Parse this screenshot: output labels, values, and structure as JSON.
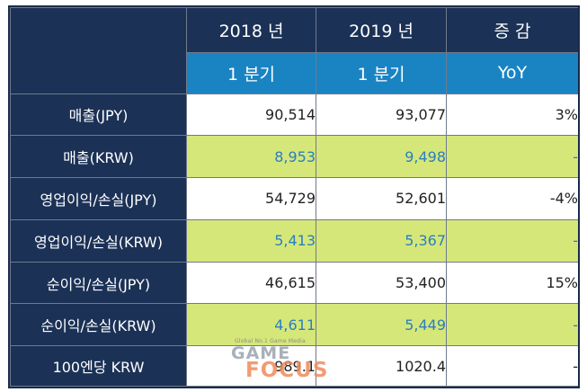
{
  "header": {
    "col_2018": "2018 년",
    "col_2019": "2019 년",
    "col_change": "증 감",
    "sub_2018": "1 분기",
    "sub_2019": "1 분기",
    "sub_change": "YoY"
  },
  "rows": [
    {
      "label": "매출(JPY)",
      "v2018": "90,514",
      "v2019": "93,077",
      "yoy": "3%"
    },
    {
      "label": "매출(KRW)",
      "v2018": "8,953",
      "v2019": "9,498",
      "yoy": "-"
    },
    {
      "label": "영업이익/손실(JPY)",
      "v2018": "54,729",
      "v2019": "52,601",
      "yoy": "-4%"
    },
    {
      "label": "영업이익/손실(KRW)",
      "v2018": "5,413",
      "v2019": "5,367",
      "yoy": "-"
    },
    {
      "label": "순이익/손실(JPY)",
      "v2018": "46,615",
      "v2019": "53,400",
      "yoy": "15%"
    },
    {
      "label": "순이익/손실(KRW)",
      "v2018": "4,611",
      "v2019": "5,449",
      "yoy": "-"
    },
    {
      "label": "100엔당 KRW",
      "v2018": "989.1",
      "v2019": "1020.4",
      "yoy": "-"
    }
  ],
  "watermark": {
    "tagline": "Global No.1 Game Media",
    "line1": "GAME",
    "line2": "FOCUS"
  },
  "colors": {
    "header_dark": "#1b3156",
    "header_blue": "#1a84c3",
    "krw_highlight": "#d6e77a",
    "krw_text": "#2a7fbf"
  }
}
